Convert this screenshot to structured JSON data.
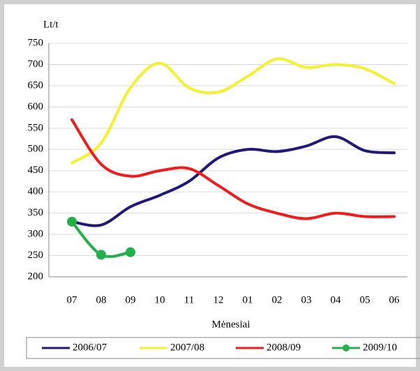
{
  "chart_data": {
    "type": "line",
    "y_label": "Lt/t",
    "x_label": "Mėnesiai",
    "categories": [
      "07",
      "08",
      "09",
      "10",
      "11",
      "12",
      "01",
      "02",
      "03",
      "04",
      "05",
      "06"
    ],
    "series": [
      {
        "name": "2006/07",
        "color": "#1f1a7a",
        "values": [
          330,
          322,
          365,
          392,
          425,
          480,
          500,
          495,
          508,
          530,
          497,
          492
        ]
      },
      {
        "name": "2007/08",
        "color": "#f5f032",
        "values": [
          468,
          515,
          645,
          703,
          645,
          635,
          672,
          713,
          693,
          700,
          690,
          655
        ]
      },
      {
        "name": "2008/09",
        "color": "#ee1c1c",
        "values": [
          570,
          465,
          437,
          450,
          455,
          415,
          372,
          350,
          337,
          350,
          342,
          342
        ]
      },
      {
        "name": "2009/10",
        "color": "#22b04a",
        "values": [
          330,
          252,
          258,
          null,
          null,
          null,
          null,
          null,
          null,
          null,
          null,
          null
        ]
      }
    ],
    "ylim": [
      200,
      750
    ],
    "yticks": [
      200,
      250,
      300,
      350,
      400,
      450,
      500,
      550,
      600,
      650,
      700,
      750
    ],
    "grid": true,
    "legend": "bottom"
  }
}
